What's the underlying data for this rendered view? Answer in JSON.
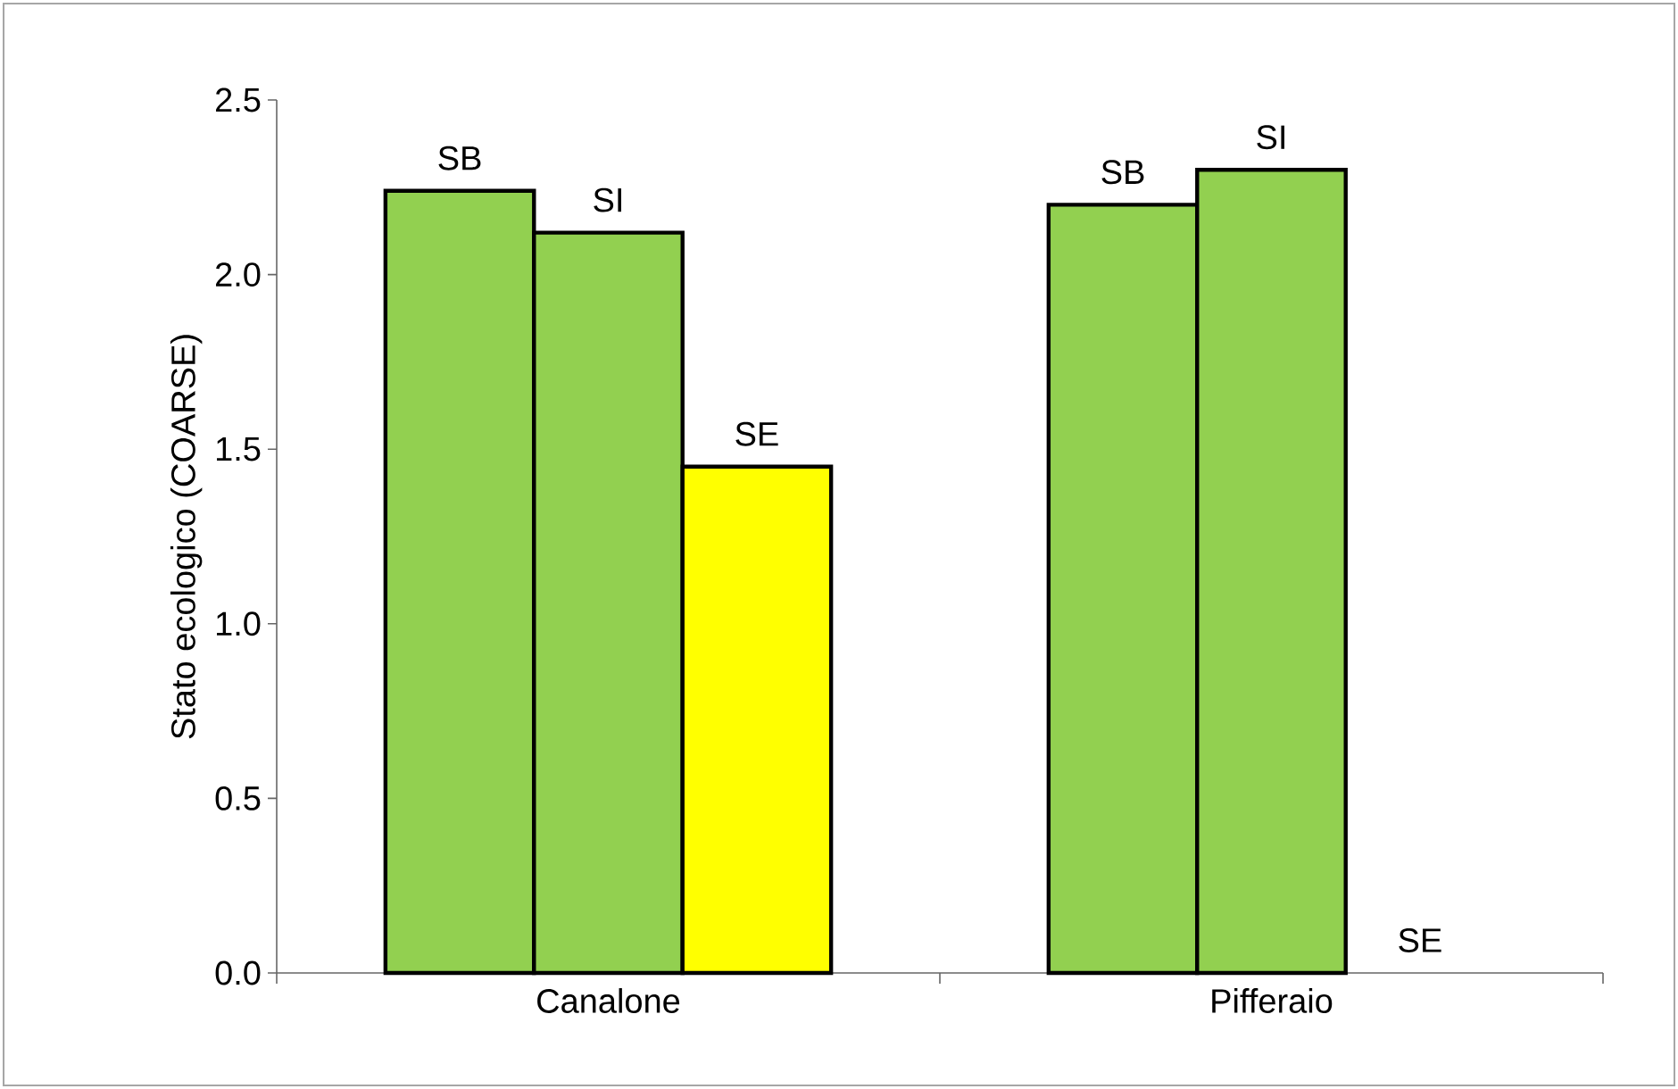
{
  "chart_data": {
    "type": "bar",
    "ylabel": "Stato ecologico (COARSE)",
    "categories": [
      "Canalone",
      "Pifferaio"
    ],
    "series": [
      {
        "name": "SB",
        "color": "#92d050",
        "values": [
          2.24,
          2.2
        ]
      },
      {
        "name": "SI",
        "color": "#92d050",
        "values": [
          2.12,
          2.3
        ]
      },
      {
        "name": "SE",
        "color": "#ffff00",
        "values": [
          1.45,
          0
        ]
      }
    ],
    "ylim": [
      0,
      2.5
    ],
    "yticks": [
      {
        "value": 0,
        "label": "0.0"
      },
      {
        "value": 0.5,
        "label": "0.5"
      },
      {
        "value": 1,
        "label": "1.0"
      },
      {
        "value": 1.5,
        "label": "1.5"
      },
      {
        "value": 2,
        "label": "2.0"
      },
      {
        "value": 2.5,
        "label": "2.5"
      }
    ],
    "grid": false,
    "legend": false
  }
}
